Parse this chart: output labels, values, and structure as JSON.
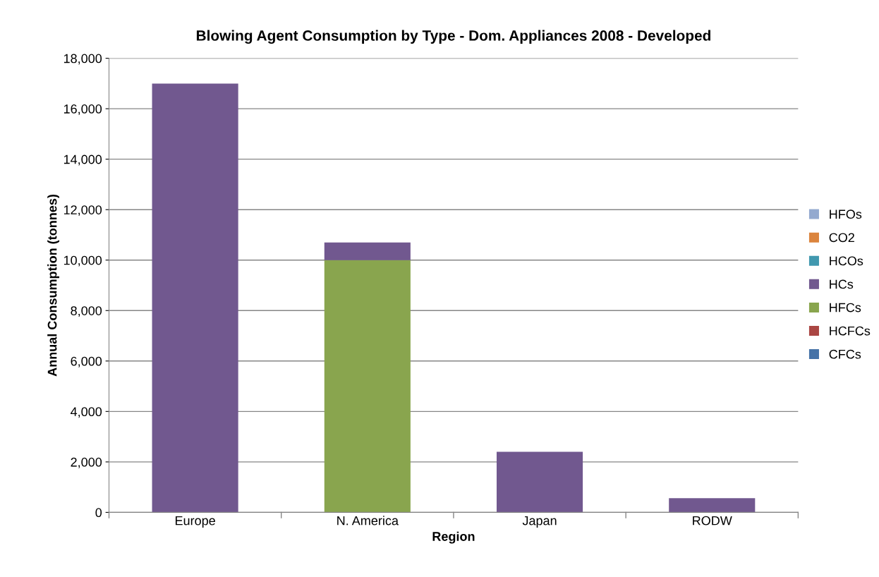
{
  "chart_data": {
    "type": "bar",
    "title": "Blowing Agent Consumption by Type - Dom. Appliances 2008 - Developed",
    "xlabel": "Region",
    "ylabel": "Annual Consumption (tonnes)",
    "categories": [
      "Europe",
      "N. America",
      "Japan",
      "RODW"
    ],
    "stacked": true,
    "series": [
      {
        "name": "CFCs",
        "color": "#4572a7",
        "values": [
          0,
          0,
          0,
          0
        ]
      },
      {
        "name": "HCFCs",
        "color": "#aa4643",
        "values": [
          0,
          0,
          0,
          0
        ]
      },
      {
        "name": "HFCs",
        "color": "#89a54e",
        "values": [
          0,
          10000,
          0,
          0
        ]
      },
      {
        "name": "HCs",
        "color": "#71588f",
        "values": [
          17000,
          700,
          2400,
          560
        ]
      },
      {
        "name": "HCOs",
        "color": "#4198af",
        "values": [
          0,
          0,
          0,
          0
        ]
      },
      {
        "name": "CO2",
        "color": "#db843d",
        "values": [
          0,
          0,
          0,
          0
        ]
      },
      {
        "name": "HFOs",
        "color": "#93a9cf",
        "values": [
          0,
          0,
          0,
          0
        ]
      }
    ],
    "ylim": [
      0,
      18000
    ],
    "yticks": [
      0,
      {
        "value": 2000,
        "label": "2,000"
      },
      {
        "value": 4000,
        "label": "4,000"
      },
      {
        "value": 6000,
        "label": "6,000"
      },
      {
        "value": 8000,
        "label": "8,000"
      },
      {
        "value": 10000,
        "label": "10,000"
      },
      {
        "value": 12000,
        "label": "12,000"
      },
      {
        "value": 14000,
        "label": "14,000"
      },
      {
        "value": 16000,
        "label": "16,000"
      },
      {
        "value": 18000,
        "label": "18,000"
      }
    ],
    "grid": "y",
    "legend": "right"
  }
}
